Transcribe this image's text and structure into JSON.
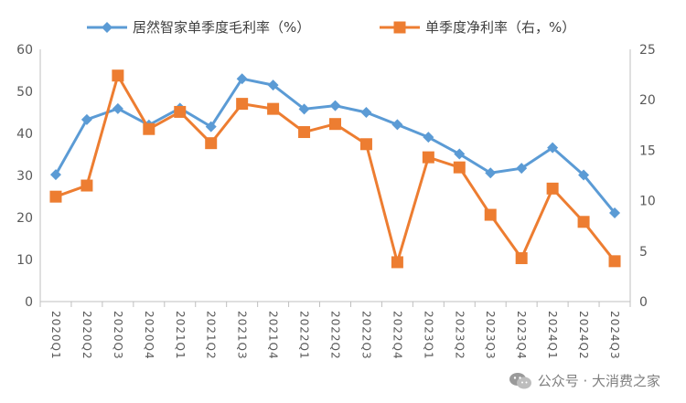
{
  "chart_data": {
    "type": "line",
    "categories": [
      "2020Q1",
      "2020Q2",
      "2020Q3",
      "2020Q4",
      "2021Q1",
      "2021Q2",
      "2021Q3",
      "2021Q4",
      "2022Q1",
      "2022Q2",
      "2022Q3",
      "2022Q4",
      "2023Q1",
      "2023Q2",
      "2023Q3",
      "2023Q4",
      "2024Q1",
      "2024Q2",
      "2024Q3"
    ],
    "series": [
      {
        "name": "居然智家单季度毛利率（%）",
        "axis": "left",
        "color": "#5B9BD5",
        "marker": "diamond",
        "values": [
          30.2,
          43.3,
          45.9,
          42.0,
          46.0,
          41.6,
          53.0,
          51.5,
          45.8,
          46.6,
          45.0,
          42.1,
          39.1,
          35.1,
          30.6,
          31.7,
          36.6,
          30.1,
          21.1
        ]
      },
      {
        "name": "单季度净利率（右，%）",
        "axis": "right",
        "color": "#ED7D31",
        "marker": "square",
        "values": [
          10.4,
          11.5,
          22.4,
          17.1,
          18.8,
          15.7,
          19.6,
          19.1,
          16.8,
          17.6,
          15.6,
          3.9,
          14.3,
          13.3,
          8.6,
          4.3,
          11.2,
          7.9,
          4.0
        ]
      }
    ],
    "yleft": {
      "ticks": [
        "0",
        "10",
        "20",
        "30",
        "40",
        "50",
        "60"
      ],
      "lim": [
        0,
        60
      ]
    },
    "yright": {
      "ticks": [
        "0",
        "5",
        "10",
        "15",
        "20",
        "25"
      ],
      "lim": [
        0,
        25
      ]
    },
    "grid": false,
    "legend": "top-center"
  },
  "watermark": {
    "text": "公众号 · 大消费之家"
  }
}
